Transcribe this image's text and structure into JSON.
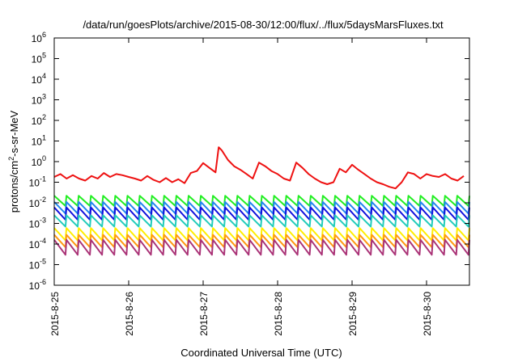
{
  "chart_data": {
    "type": "line",
    "title": "/data/run/goesPlots/archive/2015-08-30/12:00/flux/../flux/5daysMarsFluxes.txt",
    "xlabel": "Coordinated Universal Time (UTC)",
    "ylabel_parts": {
      "base": "protons/cm",
      "sup": "2",
      "rest": "-s-sr-MeV"
    },
    "y_scale": "log",
    "ylim": [
      1e-06,
      1000000.0
    ],
    "x_range_days": [
      "2015-08-25",
      "2015-08-30 12:00"
    ],
    "x_ticks": [
      "2015-8-25",
      "2015-8-26",
      "2015-8-27",
      "2015-8-28",
      "2015-8-29",
      "2015-8-30"
    ],
    "y_ticks": [
      {
        "base": "10",
        "exp": "-6"
      },
      {
        "base": "10",
        "exp": "-5"
      },
      {
        "base": "10",
        "exp": "-4"
      },
      {
        "base": "10",
        "exp": "-3"
      },
      {
        "base": "10",
        "exp": "-2"
      },
      {
        "base": "10",
        "exp": "-1"
      },
      {
        "base": "10",
        "exp": "0"
      },
      {
        "base": "10",
        "exp": "1"
      },
      {
        "base": "10",
        "exp": "2"
      },
      {
        "base": "10",
        "exp": "3"
      },
      {
        "base": "10",
        "exp": "4"
      },
      {
        "base": "10",
        "exp": "5"
      },
      {
        "base": "10",
        "exp": "6"
      }
    ],
    "grid": false,
    "legend": "none",
    "series": [
      {
        "color": "#ee1111",
        "x": [
          "2015-08-25 00:00",
          "2015-08-25 02:00",
          "2015-08-25 04:00",
          "2015-08-25 06:00",
          "2015-08-25 08:00",
          "2015-08-25 10:00",
          "2015-08-25 12:00",
          "2015-08-25 14:00",
          "2015-08-25 16:00",
          "2015-08-25 18:00",
          "2015-08-25 20:00",
          "2015-08-25 22:00",
          "2015-08-26 00:00",
          "2015-08-26 02:00",
          "2015-08-26 04:00",
          "2015-08-26 06:00",
          "2015-08-26 08:00",
          "2015-08-26 10:00",
          "2015-08-26 12:00",
          "2015-08-26 14:00",
          "2015-08-26 16:00",
          "2015-08-26 18:00",
          "2015-08-26 20:00",
          "2015-08-26 22:00",
          "2015-08-27 00:00",
          "2015-08-27 02:00",
          "2015-08-27 04:00",
          "2015-08-27 05:00",
          "2015-08-27 06:00",
          "2015-08-27 08:00",
          "2015-08-27 10:00",
          "2015-08-27 12:00",
          "2015-08-27 14:00",
          "2015-08-27 16:00",
          "2015-08-27 18:00",
          "2015-08-27 20:00",
          "2015-08-27 22:00",
          "2015-08-28 00:00",
          "2015-08-28 02:00",
          "2015-08-28 04:00",
          "2015-08-28 06:00",
          "2015-08-28 08:00",
          "2015-08-28 10:00",
          "2015-08-28 12:00",
          "2015-08-28 14:00",
          "2015-08-28 16:00",
          "2015-08-28 18:00",
          "2015-08-28 20:00",
          "2015-08-28 22:00",
          "2015-08-29 00:00",
          "2015-08-29 02:00",
          "2015-08-29 04:00",
          "2015-08-29 06:00",
          "2015-08-29 08:00",
          "2015-08-29 10:00",
          "2015-08-29 12:00",
          "2015-08-29 14:00",
          "2015-08-29 16:00",
          "2015-08-29 18:00",
          "2015-08-29 20:00",
          "2015-08-29 22:00",
          "2015-08-30 00:00",
          "2015-08-30 02:00",
          "2015-08-30 04:00",
          "2015-08-30 06:00",
          "2015-08-30 08:00",
          "2015-08-30 10:00",
          "2015-08-30 12:00"
        ],
        "y": [
          0.18,
          0.25,
          0.15,
          0.22,
          0.15,
          0.12,
          0.2,
          0.15,
          0.28,
          0.18,
          0.25,
          0.22,
          0.18,
          0.15,
          0.12,
          0.2,
          0.13,
          0.1,
          0.16,
          0.1,
          0.14,
          0.09,
          0.28,
          0.35,
          0.85,
          0.5,
          0.3,
          5,
          3.5,
          1.2,
          0.6,
          0.4,
          0.25,
          0.15,
          0.9,
          0.6,
          0.35,
          0.25,
          0.15,
          0.12,
          0.9,
          0.5,
          0.25,
          0.15,
          0.1,
          0.08,
          0.1,
          0.45,
          0.3,
          0.7,
          0.4,
          0.25,
          0.15,
          0.1,
          0.08,
          0.06,
          0.05,
          0.1,
          0.3,
          0.25,
          0.15,
          0.25,
          0.2,
          0.18,
          0.25,
          0.15,
          0.12,
          0.2
        ]
      },
      {
        "color": "#22ee22",
        "cycle": {
          "peak": 0.022,
          "trough": 0.007,
          "count": 34
        }
      },
      {
        "color": "#2288ee",
        "cycle": {
          "peak": 0.011,
          "trough": 0.003,
          "count": 34
        }
      },
      {
        "color": "#1111dd",
        "cycle": {
          "peak": 0.006,
          "trough": 0.0015,
          "count": 34
        }
      },
      {
        "color": "#22ccbb",
        "cycle": {
          "peak": 0.0025,
          "trough": 0.0007,
          "count": 34
        }
      },
      {
        "color": "#ffee00",
        "cycle": {
          "peak": 0.0006,
          "trough": 0.00015,
          "count": 34
        }
      },
      {
        "color": "#ff9911",
        "cycle": {
          "peak": 0.00028,
          "trough": 7e-05,
          "count": 34
        }
      },
      {
        "color": "#aa3377",
        "cycle": {
          "peak": 0.00016,
          "trough": 3e-05,
          "count": 34
        }
      }
    ]
  }
}
